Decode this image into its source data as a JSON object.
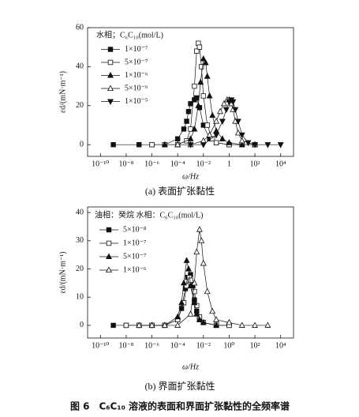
{
  "chart_data": [
    {
      "type": "line",
      "caption": "(a) 表面扩张黏性",
      "xlabel": "ω/Hz",
      "ylabel": "εd/(mN·m⁻¹)",
      "legend_title": "水相；C₆C₁₀(mol/L)",
      "log_x": true,
      "xlim": [
        1e-11,
        100000.0
      ],
      "ylim": [
        -6,
        60
      ],
      "xticks": [
        {
          "value": 1e-10,
          "label": "10⁻¹⁰"
        },
        {
          "value": 1e-08,
          "label": "10⁻⁸"
        },
        {
          "value": 1e-06,
          "label": "10⁻⁶"
        },
        {
          "value": 0.0001,
          "label": "10⁻⁴"
        },
        {
          "value": 0.01,
          "label": "10⁻²"
        },
        1,
        {
          "value": 100,
          "label": "10²"
        },
        {
          "value": 10000,
          "label": "10⁴"
        }
      ],
      "yticks": [
        0,
        20,
        40,
        60
      ],
      "series": [
        {
          "name": "1×10⁻⁷",
          "color": "#111111",
          "marker": "square-filled",
          "x": [
            1e-09,
            1e-07,
            1e-06,
            1e-05,
            0.0001,
            0.0003,
            0.0005,
            0.0007,
            0.001,
            0.002,
            0.003,
            0.005,
            0.01,
            0.03,
            0.1,
            1,
            10,
            100
          ],
          "values": [
            0,
            0,
            0,
            0,
            3,
            8,
            12,
            17,
            21,
            23,
            24,
            19,
            10,
            3,
            1,
            0,
            0,
            0
          ]
        },
        {
          "name": "5×10⁻⁷",
          "color": "#111111",
          "marker": "square-open",
          "x": [
            1e-06,
            1e-05,
            0.0001,
            0.0005,
            0.001,
            0.002,
            0.003,
            0.004,
            0.005,
            0.007,
            0.01,
            0.02,
            0.05,
            0.1,
            1,
            10,
            100
          ],
          "values": [
            0,
            0,
            0,
            2,
            8,
            30,
            48,
            52,
            50,
            40,
            25,
            10,
            3,
            1,
            0,
            0,
            0
          ]
        },
        {
          "name": "1×10⁻⁶",
          "color": "#111111",
          "marker": "triangle-filled",
          "x": [
            1e-05,
            0.0001,
            0.001,
            0.002,
            0.004,
            0.006,
            0.01,
            0.015,
            0.02,
            0.03,
            0.05,
            0.1,
            0.3,
            1,
            10,
            100
          ],
          "values": [
            0,
            0,
            3,
            8,
            20,
            32,
            44,
            42,
            35,
            25,
            15,
            7,
            3,
            1,
            0,
            0
          ]
        },
        {
          "name": "5×10⁻⁶",
          "color": "#111111",
          "marker": "triangle-open",
          "x": [
            0.0001,
            0.001,
            0.01,
            0.03,
            0.1,
            0.2,
            0.4,
            0.7,
            1,
            1.5,
            2,
            3,
            5,
            10,
            100
          ],
          "values": [
            0,
            0,
            2,
            5,
            12,
            17,
            21,
            23,
            23,
            21,
            18,
            12,
            6,
            2,
            0
          ]
        },
        {
          "name": "1×10⁻⁵",
          "color": "#111111",
          "marker": "triangle-down-filled",
          "x": [
            0.001,
            0.01,
            0.1,
            0.3,
            0.6,
            1,
            1.5,
            2,
            3,
            5,
            10,
            30,
            100,
            1000,
            10000
          ],
          "values": [
            0,
            0,
            5,
            12,
            18,
            22,
            23,
            22,
            18,
            12,
            5,
            1,
            0,
            0,
            0
          ]
        }
      ]
    },
    {
      "type": "line",
      "caption": "(b) 界面扩张黏性",
      "xlabel": "ω/Hz",
      "ylabel": "εd/(mN·m⁻¹)",
      "legend_title": "油相：癸烷 水相：C₆C₁₀(mol/L)",
      "log_x": true,
      "xlim": [
        1e-11,
        100000.0
      ],
      "ylim": [
        -4.5,
        42
      ],
      "xticks": [
        {
          "value": 1e-10,
          "label": "10⁻¹⁰"
        },
        {
          "value": 1e-08,
          "label": "10⁻⁸"
        },
        {
          "value": 1e-06,
          "label": "10⁻⁶"
        },
        {
          "value": 0.0001,
          "label": "10⁻⁴"
        },
        {
          "value": 0.01,
          "label": "10⁻²"
        },
        {
          "value": 1,
          "label": "10⁰"
        },
        {
          "value": 100,
          "label": "10²"
        },
        {
          "value": 10000,
          "label": "10⁴"
        }
      ],
      "yticks": [
        0,
        10,
        20,
        30,
        40
      ],
      "series": [
        {
          "name": "5×10⁻⁸",
          "color": "#111111",
          "marker": "square-filled",
          "x": [
            1e-09,
            1e-08,
            1e-07,
            1e-06,
            1e-05,
            0.0001,
            0.0002,
            0.0004,
            0.0006,
            0.001,
            0.0015,
            0.002,
            0.003,
            0.005,
            0.01,
            0.1,
            1
          ],
          "values": [
            0,
            0,
            0,
            0,
            0,
            2,
            6,
            13,
            17,
            18,
            14,
            9,
            5,
            2,
            1,
            0,
            0
          ]
        },
        {
          "name": "1×10⁻⁷",
          "color": "#111111",
          "marker": "square-open",
          "x": [
            1e-08,
            1e-07,
            1e-06,
            1e-05,
            0.0001,
            0.0003,
            0.0005,
            0.0008,
            0.001,
            0.002,
            0.003,
            0.005,
            0.01,
            0.1,
            1
          ],
          "values": [
            0,
            0,
            0,
            0,
            2,
            8,
            14,
            17,
            16,
            12,
            7,
            3,
            1,
            0,
            0
          ]
        },
        {
          "name": "5×10⁻⁷",
          "color": "#111111",
          "marker": "triangle-filled",
          "x": [
            1e-06,
            1e-05,
            0.0001,
            0.0002,
            0.0003,
            0.0005,
            0.0007,
            0.001,
            0.002,
            0.003,
            0.005,
            0.01,
            0.1
          ],
          "values": [
            0,
            0,
            3,
            8,
            15,
            23,
            20,
            14,
            8,
            4,
            2,
            1,
            0
          ]
        },
        {
          "name": "1×10⁻⁶",
          "color": "#111111",
          "marker": "triangle-open",
          "x": [
            1e-07,
            1e-06,
            1e-05,
            0.0001,
            0.001,
            0.002,
            0.003,
            0.005,
            0.007,
            0.01,
            0.02,
            0.05,
            0.1,
            1,
            10,
            100,
            1000
          ],
          "values": [
            0,
            0,
            0,
            0,
            4,
            15,
            26,
            34,
            30,
            22,
            12,
            5,
            2,
            1,
            0,
            0,
            0
          ]
        }
      ]
    }
  ],
  "figure_caption": "图 6　C₆C₁₀ 溶液的表面和界面扩张黏性的全频率谱"
}
